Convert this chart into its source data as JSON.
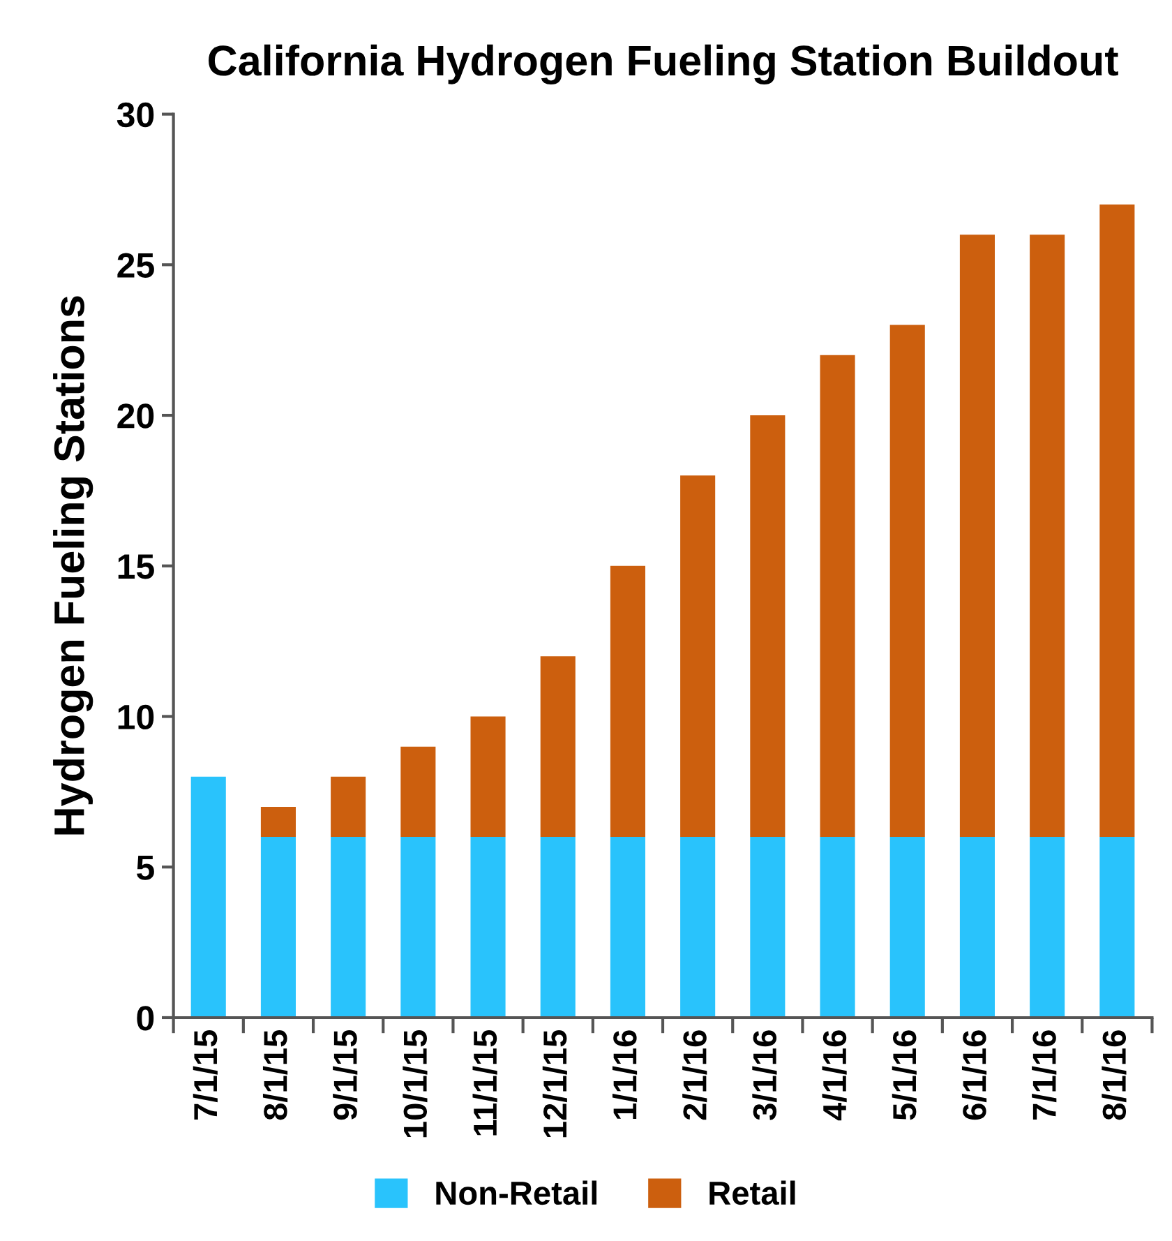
{
  "chart_data": {
    "type": "bar",
    "title": "California Hydrogen Fueling Station Buildout",
    "ylabel": "Hydrogen Fueling Stations",
    "categories": [
      "7/1/15",
      "8/1/15",
      "9/1/15",
      "10/1/15",
      "11/1/15",
      "12/1/15",
      "1/1/16",
      "2/1/16",
      "3/1/16",
      "4/1/16",
      "5/1/16",
      "6/1/16",
      "7/1/16",
      "8/1/16"
    ],
    "series": [
      {
        "name": "Non-Retail",
        "color": "#29c3fc",
        "values": [
          8,
          6,
          6,
          6,
          6,
          6,
          6,
          6,
          6,
          6,
          6,
          6,
          6,
          6
        ]
      },
      {
        "name": "Retail",
        "color": "#cc5f0e",
        "values": [
          0,
          1,
          2,
          3,
          4,
          6,
          9,
          12,
          14,
          16,
          17,
          20,
          20,
          21
        ]
      }
    ],
    "stacked": true,
    "ylim": [
      0,
      30
    ],
    "yticks": [
      0,
      5,
      10,
      15,
      20,
      25,
      30
    ],
    "grid": false,
    "legend": "bottom"
  }
}
